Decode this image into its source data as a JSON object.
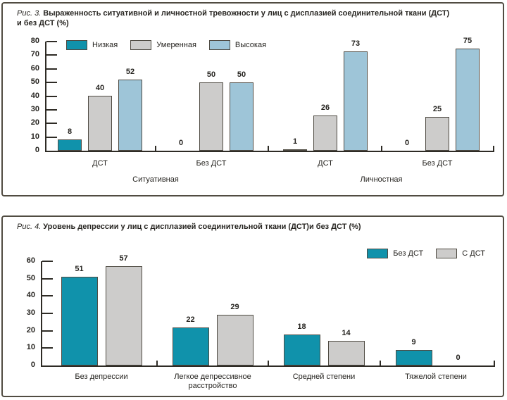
{
  "figures": [
    {
      "label": "Рис. 3.",
      "caption_line1": "Выраженность ситуативной и личностной тревожности у лиц с дисплазией соединительной ткани (ДСТ)",
      "caption_line2": "и без ДСТ (%)"
    },
    {
      "label": "Рис. 4.",
      "caption_line1": "Уровень депрессии у лиц с дисплазией соединительной ткани (ДСТ)и без ДСТ (%)"
    }
  ],
  "colors": {
    "teal": "#1092ab",
    "gray": "#cdcccb",
    "light_blue": "#9ec5d8",
    "axis": "#2e2b25",
    "panel_border": "#514c42",
    "bar_border": "#4f4b43"
  },
  "chart_data": [
    {
      "type": "bar",
      "title": "Выраженность ситуативной и личностной тревожности у лиц с дисплазией соединительной ткани (ДСТ) и без ДСТ (%)",
      "categories": [
        "ДСТ",
        "Без ДСТ",
        "ДСТ",
        "Без ДСТ"
      ],
      "sections": [
        "Ситуативная",
        "Личностная"
      ],
      "series": [
        {
          "name": "Низкая",
          "color": "#1092ab",
          "values": [
            8,
            0,
            1,
            0
          ]
        },
        {
          "name": "Умеренная",
          "color": "#cdcccb",
          "values": [
            40,
            50,
            26,
            25
          ]
        },
        {
          "name": "Высокая",
          "color": "#9ec5d8",
          "values": [
            52,
            50,
            73,
            75
          ]
        }
      ],
      "ylim": [
        0,
        80
      ],
      "ytick_step": 10,
      "grid": false,
      "value_labels": true,
      "legend_position": "top-left"
    },
    {
      "type": "bar",
      "title": "Уровень депрессии у лиц с дисплазией соединительной ткани (ДСТ) и без ДСТ (%)",
      "categories": [
        "Без депрессии",
        "Легкое депрессивное расстройство",
        "Средней степени",
        "Тяжелой степени"
      ],
      "series": [
        {
          "name": "Без ДСТ",
          "color": "#1092ab",
          "values": [
            51,
            22,
            18,
            9
          ]
        },
        {
          "name": "С ДСТ",
          "color": "#cdcccb",
          "values": [
            57,
            29,
            14,
            0
          ]
        }
      ],
      "ylim": [
        0,
        60
      ],
      "ytick_step": 10,
      "grid": false,
      "value_labels": true,
      "legend_position": "top-right"
    }
  ]
}
